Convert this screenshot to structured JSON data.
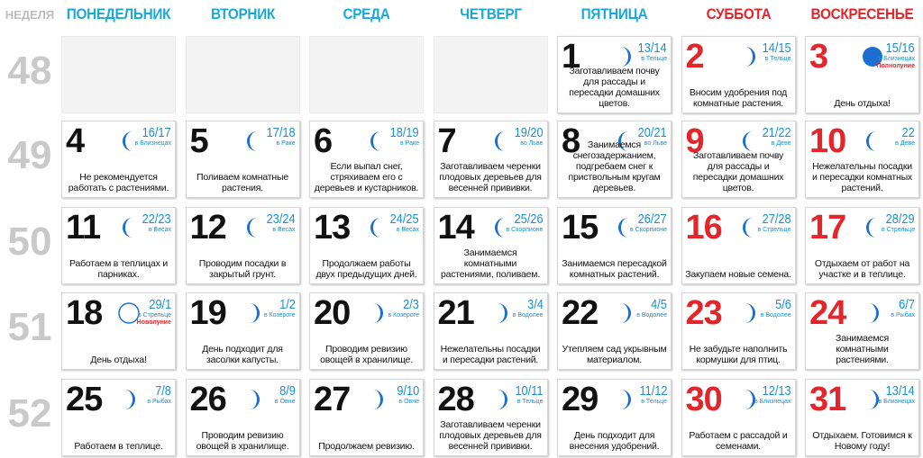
{
  "header": {
    "week_label": "НЕДЕЛЯ",
    "days": [
      "ПОНЕДЕЛЬНИК",
      "ВТОРНИК",
      "СРЕДА",
      "ЧЕТВЕРГ",
      "ПЯТНИЦА",
      "СУББОТА",
      "ВОСКРЕСЕНЬЕ"
    ],
    "weekday_color": "#19a9d9",
    "weekend_color": "#e3262b"
  },
  "weeks": [
    {
      "number": "48",
      "days": [
        null,
        null,
        null,
        null,
        {
          "day": "1",
          "lunar_days": "13/14",
          "sign": "в Тельце",
          "moon": "waxing",
          "note": "Заготавливаем почву для рассады и пересадки домашних цветов."
        },
        {
          "day": "2",
          "lunar_days": "14/15",
          "sign": "в Тельце",
          "moon": "waxing",
          "note": "Вносим удобрения под комнатные растения."
        },
        {
          "day": "3",
          "lunar_days": "15/16",
          "sign": "в Близнецах",
          "phase": "Полнолуние",
          "moon": "full",
          "note": "День отдыха!"
        }
      ]
    },
    {
      "number": "49",
      "days": [
        {
          "day": "4",
          "lunar_days": "16/17",
          "sign": "в Близнецах",
          "moon": "waning",
          "note": "Не рекомендуется работать с растениями."
        },
        {
          "day": "5",
          "lunar_days": "17/18",
          "sign": "в Раке",
          "moon": "waning",
          "note": "Поливаем комнатные растения."
        },
        {
          "day": "6",
          "lunar_days": "18/19",
          "sign": "в Раке",
          "moon": "waning",
          "note": "Если выпал снег, стряхиваем его с деревьев и кустарников."
        },
        {
          "day": "7",
          "lunar_days": "19/20",
          "sign": "во Льве",
          "moon": "waning",
          "note": "Заготавливаем черенки плодовых деревьев для весенней прививки."
        },
        {
          "day": "8",
          "lunar_days": "20/21",
          "sign": "во Льве",
          "moon": "waning",
          "note": "Занимаемся снегозадержанием, подгребаем снег к приствольным кругам деревьев."
        },
        {
          "day": "9",
          "lunar_days": "21/22",
          "sign": "в Деве",
          "moon": "waning",
          "note": "Заготавливаем почву для рассады и пересадки домашних цветов."
        },
        {
          "day": "10",
          "lunar_days": "22",
          "sign": "в Деве",
          "moon": "waning",
          "note": "Нежелательны посадки и пересадки комнатных растений."
        }
      ]
    },
    {
      "number": "50",
      "days": [
        {
          "day": "11",
          "lunar_days": "22/23",
          "sign": "в Весах",
          "moon": "waning",
          "note": "Работаем в теплицах и парниках."
        },
        {
          "day": "12",
          "lunar_days": "23/24",
          "sign": "в Весах",
          "moon": "waning",
          "note": "Проводим посадки в закрытый грунт."
        },
        {
          "day": "13",
          "lunar_days": "24/25",
          "sign": "в Весах",
          "moon": "waning",
          "note": "Продолжаем работы двух предыдущих дней."
        },
        {
          "day": "14",
          "lunar_days": "25/26",
          "sign": "в Скорпионе",
          "moon": "waning",
          "note": "Занимаемся комнатными растениями, поливаем."
        },
        {
          "day": "15",
          "lunar_days": "26/27",
          "sign": "в Скорпионе",
          "moon": "waning",
          "note": "Занимаемся пересадкой комнатных растений."
        },
        {
          "day": "16",
          "lunar_days": "27/28",
          "sign": "в Стрельце",
          "moon": "waning",
          "note": "Закупаем новые семена."
        },
        {
          "day": "17",
          "lunar_days": "28/29",
          "sign": "в Стрельце",
          "moon": "waning",
          "note": "Отдыхаем от работ на участке и в теплице."
        }
      ]
    },
    {
      "number": "51",
      "days": [
        {
          "day": "18",
          "lunar_days": "29/1",
          "sign": "в Стрельце",
          "phase": "Новолуние",
          "moon": "new",
          "note": "День отдыха!"
        },
        {
          "day": "19",
          "lunar_days": "1/2",
          "sign": "в Козероге",
          "moon": "waxing",
          "note": "День подходит для засолки капусты."
        },
        {
          "day": "20",
          "lunar_days": "2/3",
          "sign": "в Козероге",
          "moon": "waxing",
          "note": "Проводим ревизию овощей в хранилище."
        },
        {
          "day": "21",
          "lunar_days": "3/4",
          "sign": "в Водолее",
          "moon": "waxing",
          "note": "Нежелательны посадки и пересадки растений."
        },
        {
          "day": "22",
          "lunar_days": "4/5",
          "sign": "в Водолее",
          "moon": "waxing",
          "note": "Утепляем сад укрывным материалом."
        },
        {
          "day": "23",
          "lunar_days": "5/6",
          "sign": "в Водолее",
          "moon": "waxing",
          "note": "Не забудьте наполнить кормушки для птиц."
        },
        {
          "day": "24",
          "lunar_days": "6/7",
          "sign": "в Рыбах",
          "moon": "waxing",
          "note": "Занимаемся комнатными растениями."
        }
      ]
    },
    {
      "number": "52",
      "days": [
        {
          "day": "25",
          "lunar_days": "7/8",
          "sign": "в Рыбах",
          "moon": "waxing",
          "note": "Работаем в теплице."
        },
        {
          "day": "26",
          "lunar_days": "8/9",
          "sign": "в Овне",
          "moon": "waxing",
          "note": "Проводим ревизию овощей в хранилище."
        },
        {
          "day": "27",
          "lunar_days": "9/10",
          "sign": "в Овне",
          "moon": "waxing",
          "note": "Продолжаем ревизию."
        },
        {
          "day": "28",
          "lunar_days": "10/11",
          "sign": "в Тельце",
          "moon": "waxing",
          "note": "Заготавливаем черенки плодовых деревьев для весенней прививки."
        },
        {
          "day": "29",
          "lunar_days": "11/12",
          "sign": "в Тельце",
          "moon": "waxing",
          "note": "День подходит для внесения удобрений."
        },
        {
          "day": "30",
          "lunar_days": "12/13",
          "sign": "в Близнецах",
          "moon": "waxing",
          "note": "Работаем с рассадой и семенами."
        },
        {
          "day": "31",
          "lunar_days": "13/14",
          "sign": "в Близнецах",
          "moon": "waxing",
          "note": "Отдыхаем. Готовимся к Новому году!"
        }
      ]
    }
  ]
}
